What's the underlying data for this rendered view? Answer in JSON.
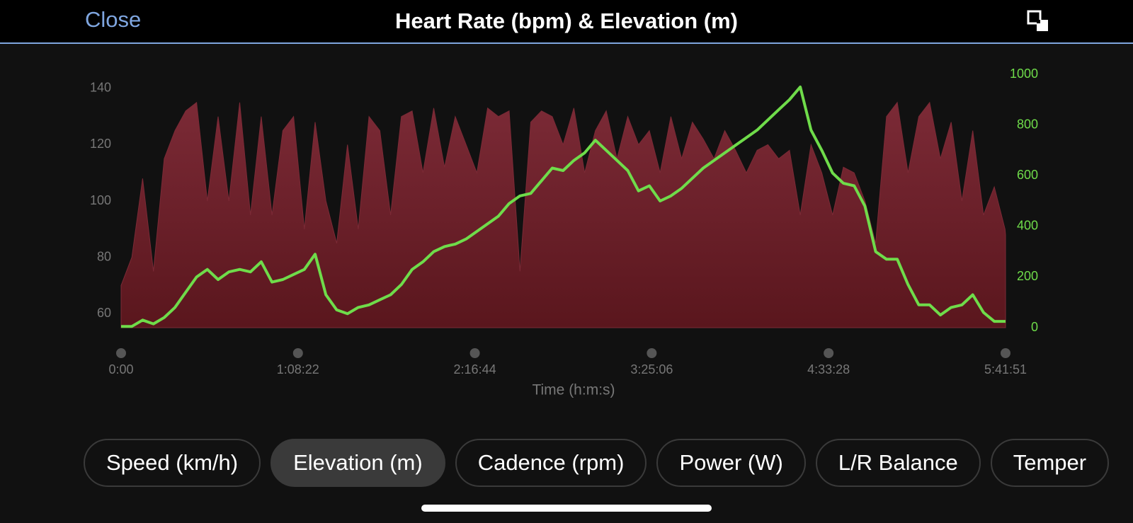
{
  "header": {
    "close": "Close"
  },
  "chart_data": {
    "type": "area-line",
    "title": "Heart Rate (bpm) & Elevation (m)",
    "xlabel": "Time (h:m:s)",
    "x": [
      0,
      250,
      500,
      750,
      1000,
      1250,
      1500,
      1750,
      2000,
      2250,
      2500,
      2750,
      3000,
      3250,
      3500,
      3750,
      4000,
      4250,
      4500,
      4750,
      5000,
      5250,
      5500,
      5750,
      6000,
      6250,
      6500,
      6750,
      7000,
      7250,
      7500,
      7750,
      8000,
      8250,
      8500,
      8750,
      9000,
      9250,
      9500,
      9750,
      10000,
      10250,
      10500,
      10750,
      11000,
      11250,
      11500,
      11750,
      12000,
      12250,
      12500,
      12750,
      13000,
      13250,
      13500,
      13750,
      14000,
      14250,
      14500,
      14750,
      15000,
      15250,
      15500,
      15750,
      16000,
      16250,
      16500,
      16750,
      17000,
      17250,
      17500,
      17750,
      18000,
      18250,
      18500,
      18750,
      19000,
      19250,
      19500,
      19750,
      20000,
      20250,
      20500,
      20511
    ],
    "xlim": [
      0,
      20511
    ],
    "xticks": [
      {
        "value": 0,
        "label": "0:00"
      },
      {
        "value": 4102,
        "label": "1:08:22"
      },
      {
        "value": 8204,
        "label": "2:16:44"
      },
      {
        "value": 12306,
        "label": "3:25:06"
      },
      {
        "value": 16408,
        "label": "4:33:28"
      },
      {
        "value": 20511,
        "label": "5:41:51"
      }
    ],
    "ylim": [
      55,
      145
    ],
    "yticks": [
      60,
      80,
      100,
      120,
      140
    ],
    "y2lim": [
      0,
      1000
    ],
    "y2ticks": [
      0,
      200,
      400,
      600,
      800,
      1000
    ],
    "series": [
      {
        "name": "Heart Rate",
        "color": "#7b2a36",
        "kind": "area",
        "values": [
          70,
          80,
          108,
          75,
          115,
          125,
          132,
          135,
          100,
          130,
          100,
          135,
          95,
          130,
          95,
          125,
          130,
          90,
          128,
          100,
          85,
          120,
          90,
          130,
          125,
          95,
          130,
          132,
          110,
          133,
          112,
          130,
          120,
          110,
          133,
          130,
          132,
          75,
          128,
          132,
          130,
          120,
          133,
          110,
          125,
          132,
          115,
          130,
          120,
          125,
          110,
          130,
          115,
          128,
          122,
          115,
          125,
          118,
          110,
          118,
          120,
          115,
          118,
          95,
          120,
          110,
          95,
          112,
          110,
          100,
          85,
          130,
          135,
          110,
          130,
          135,
          115,
          128,
          100,
          125,
          95,
          105,
          90,
          88
        ]
      },
      {
        "name": "Elevation",
        "color": "#6fdc4a",
        "kind": "line",
        "axis": "y2",
        "values": [
          5,
          5,
          30,
          15,
          40,
          80,
          140,
          200,
          230,
          190,
          220,
          230,
          220,
          260,
          180,
          190,
          210,
          230,
          290,
          130,
          70,
          55,
          80,
          90,
          110,
          130,
          170,
          230,
          260,
          300,
          320,
          330,
          350,
          380,
          410,
          440,
          490,
          520,
          530,
          580,
          630,
          620,
          660,
          690,
          740,
          700,
          660,
          620,
          540,
          560,
          500,
          520,
          550,
          590,
          630,
          660,
          690,
          720,
          750,
          780,
          820,
          860,
          900,
          950,
          780,
          700,
          610,
          570,
          560,
          480,
          300,
          270,
          270,
          170,
          90,
          90,
          50,
          80,
          90,
          130,
          60,
          25,
          25,
          25
        ]
      }
    ]
  },
  "tabs": [
    {
      "label": "Speed (km/h)",
      "selected": false
    },
    {
      "label": "Elevation (m)",
      "selected": true
    },
    {
      "label": "Cadence (rpm)",
      "selected": false
    },
    {
      "label": "Power (W)",
      "selected": false
    },
    {
      "label": "L/R Balance",
      "selected": false
    },
    {
      "label": "Temper",
      "selected": false
    }
  ]
}
